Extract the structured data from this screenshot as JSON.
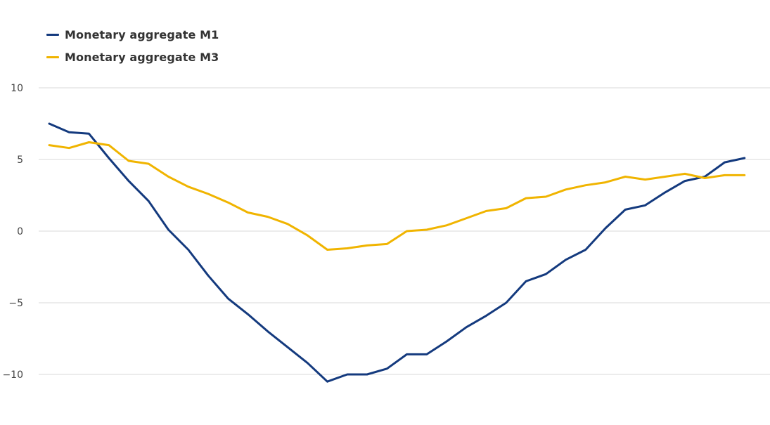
{
  "chart_data": {
    "type": "line",
    "title": "",
    "xlabel": "",
    "ylabel": "",
    "ylim": [
      -13,
      12
    ],
    "yticks": [
      10,
      5,
      0,
      -5,
      -10
    ],
    "ytick_labels": [
      "10",
      "5",
      "0",
      "−5",
      "−10"
    ],
    "grid": true,
    "legend_position": "top-left",
    "x": [
      0,
      1,
      2,
      3,
      4,
      5,
      6,
      7,
      8,
      9,
      10,
      11,
      12,
      13,
      14,
      15,
      16,
      17,
      18,
      19,
      20,
      21,
      22,
      23,
      24,
      25,
      26,
      27,
      28,
      29,
      30,
      31,
      32,
      33,
      34,
      35,
      36
    ],
    "series": [
      {
        "name": "Monetary aggregate M1",
        "color": "#143a7e",
        "values": [
          7.5,
          6.9,
          6.8,
          5.1,
          3.5,
          2.1,
          0.1,
          -1.3,
          -3.1,
          -4.7,
          -5.8,
          -7.0,
          -8.1,
          -9.2,
          -10.5,
          -10.0,
          -10.0,
          -9.6,
          -8.6,
          -8.6,
          -7.7,
          -6.7,
          -5.9,
          -5.0,
          -3.5,
          -3.0,
          -2.0,
          -1.3,
          0.2,
          1.5,
          1.8,
          2.7,
          3.5,
          3.8,
          4.8,
          5.1,
          null
        ]
      },
      {
        "name": "Monetary aggregate M3",
        "color": "#f0b400",
        "values": [
          6.0,
          5.8,
          6.2,
          6.0,
          4.9,
          4.7,
          3.8,
          3.1,
          2.6,
          2.0,
          1.3,
          1.0,
          0.5,
          -0.3,
          -1.3,
          -1.2,
          -1.0,
          -0.9,
          0.0,
          0.1,
          0.4,
          0.9,
          1.4,
          1.6,
          2.3,
          2.4,
          2.9,
          3.2,
          3.4,
          3.8,
          3.6,
          3.8,
          4.0,
          3.7,
          3.9,
          3.9,
          null
        ]
      }
    ],
    "colors": {
      "grid": "#d9d9d9",
      "tick_label": "#444444"
    }
  }
}
